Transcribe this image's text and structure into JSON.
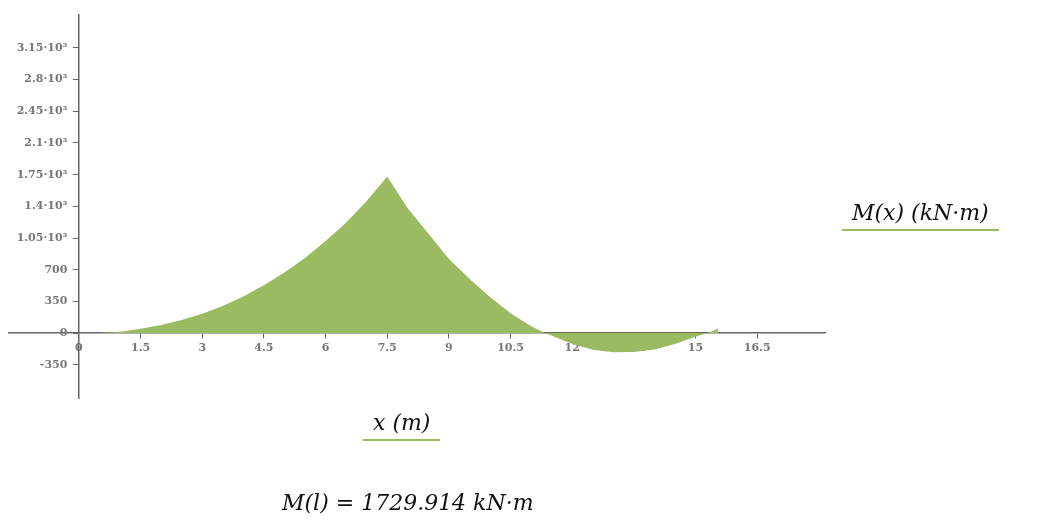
{
  "chart_data": {
    "type": "area",
    "xlabel": "x (m)",
    "ylabel": "M(x) (kN·m)",
    "annotations": [
      "M(l) = 1729.914 kN·m"
    ],
    "x": [
      0.5,
      1,
      1.5,
      2,
      2.5,
      3,
      3.5,
      4,
      4.5,
      5,
      5.5,
      6,
      6.5,
      7,
      7.5,
      8,
      8.5,
      9,
      9.5,
      10,
      10.5,
      11,
      11.34,
      12,
      12.5,
      13,
      13.5,
      14,
      14.5,
      15,
      15.3,
      15.55
    ],
    "series": [
      {
        "color": "#9bbb63",
        "values": [
          0,
          15,
          47,
          90,
          145,
          214,
          300,
          405,
          529,
          670,
          830,
          1017,
          1220,
          1460,
          1730,
          1380,
          1100,
          820,
          600,
          400,
          220,
          75,
          0,
          -120,
          -185,
          -212,
          -210,
          -180,
          -120,
          -40,
          0,
          51
        ]
      }
    ],
    "xlim": [
      -1.7,
      18.15
    ],
    "xticks": [
      0,
      1.5,
      3,
      4.5,
      6,
      7.5,
      9,
      10.5,
      12,
      13.5,
      15,
      16.5
    ],
    "ylim": [
      -717,
      3518
    ],
    "yticks": [
      -350,
      0,
      350,
      700,
      {
        "value": 1050,
        "label": "1.05·10³"
      },
      {
        "value": 1400,
        "label": "1.4·10³"
      },
      {
        "value": 1750,
        "label": "1.75·10³"
      },
      {
        "value": 2100,
        "label": "2.1·10³"
      },
      {
        "value": 2450,
        "label": "2.45·10³"
      },
      {
        "value": 2800,
        "label": "2.8·10³"
      },
      {
        "value": 3150,
        "label": "3.15·10³"
      }
    ],
    "grid": false,
    "legend": false
  }
}
